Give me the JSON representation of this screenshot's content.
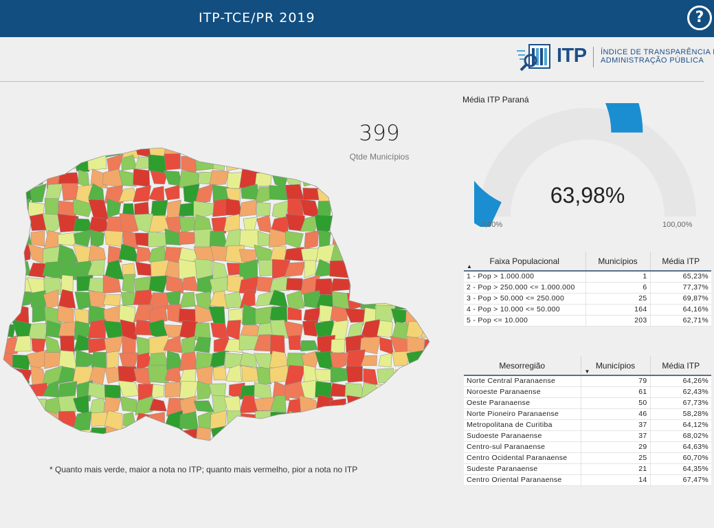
{
  "header": {
    "title": "ITP-TCE/PR 2019",
    "help_label": "?"
  },
  "logo": {
    "itp": "ITP",
    "line1": "ÍNDICE DE TRANSPARÊNCIA DA",
    "line2": "ADMINISTRAÇÃO PÚBLICA"
  },
  "kpi": {
    "value": "399",
    "label": "Qtde Municípios"
  },
  "gauge": {
    "title": "Média ITP Paraná",
    "value_text": "63,98%",
    "value": 63.98,
    "min_label": "0,00%",
    "max_label": "100,00%",
    "fill_color": "#1b8ed1",
    "track_color": "#e6e6e6"
  },
  "map": {
    "note": "* Quanto mais verde, maior a nota no ITP; quanto mais vermelho, pior a nota no ITP",
    "palette": [
      "#2e9e2e",
      "#56b346",
      "#8ccb5c",
      "#b8df7d",
      "#e5ef8f",
      "#f4d374",
      "#f2a869",
      "#ee7a57",
      "#e84c3c",
      "#d93a30"
    ]
  },
  "faixa": {
    "headers": [
      "Faixa Populacional",
      "Municípios",
      "Média ITP"
    ],
    "rows": [
      [
        "1 - Pop > 1.000.000",
        "1",
        "65,23%"
      ],
      [
        "2 - Pop > 250.000 <= 1.000.000",
        "6",
        "77,37%"
      ],
      [
        "3 - Pop > 50.000 <= 250.000",
        "25",
        "69,87%"
      ],
      [
        "4 - Pop > 10.000 <= 50.000",
        "164",
        "64,16%"
      ],
      [
        "5 - Pop <= 10.000",
        "203",
        "62,71%"
      ]
    ]
  },
  "meso": {
    "headers": [
      "Mesorregião",
      "Municípios",
      "Média ITP"
    ],
    "rows": [
      [
        "Norte Central Paranaense",
        "79",
        "64,26%"
      ],
      [
        "Noroeste Paranaense",
        "61",
        "62,43%"
      ],
      [
        "Oeste Paranaense",
        "50",
        "67,73%"
      ],
      [
        "Norte Pioneiro Paranaense",
        "46",
        "58,28%"
      ],
      [
        "Metropolitana de Curitiba",
        "37",
        "64,12%"
      ],
      [
        "Sudoeste Paranaense",
        "37",
        "68,02%"
      ],
      [
        "Centro-sul Paranaense",
        "29",
        "64,63%"
      ],
      [
        "Centro Ocidental Paranaense",
        "25",
        "60,70%"
      ],
      [
        "Sudeste Paranaense",
        "21",
        "64,35%"
      ],
      [
        "Centro Oriental Paranaense",
        "14",
        "67,47%"
      ]
    ]
  }
}
